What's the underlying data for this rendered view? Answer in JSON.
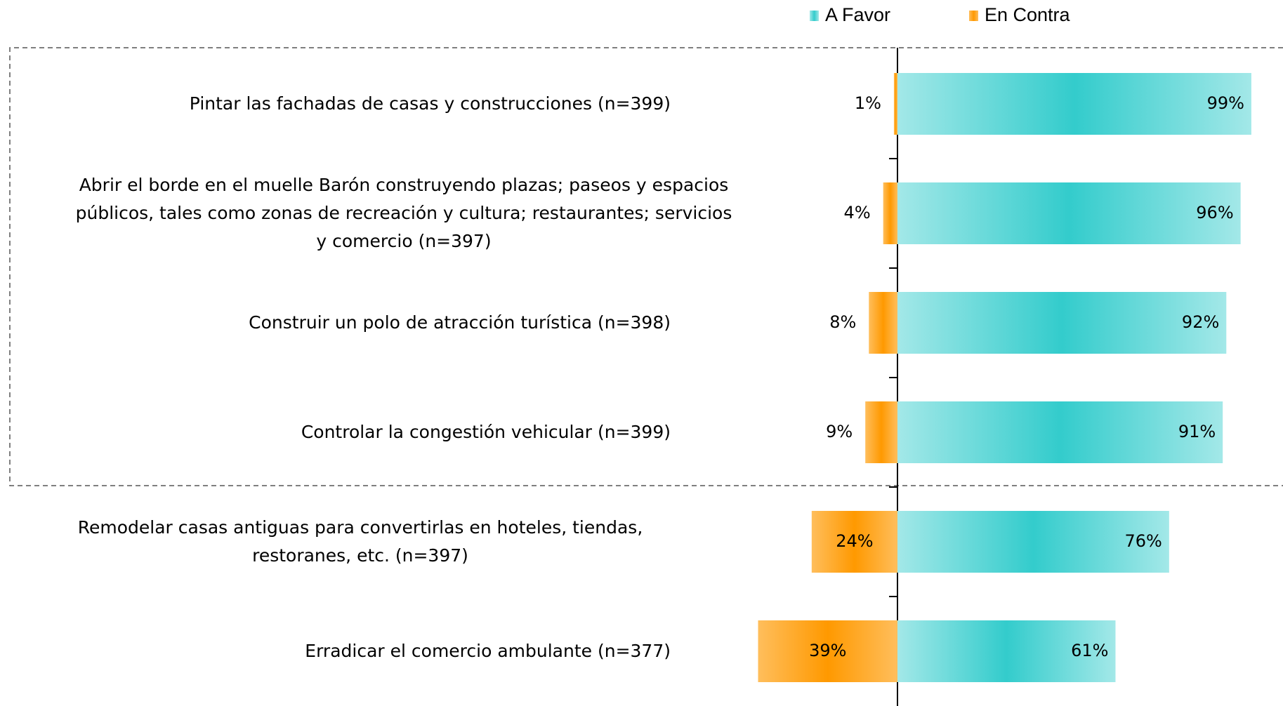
{
  "chart_data": {
    "type": "diverging-bar",
    "categories": [
      "Pintar las fachadas de casas y construcciones (n=399)",
      "Abrir el borde en el muelle Barón construyendo plazas; paseos y espacios\npúblicos, tales como zonas de recreación y cultura; restaurantes; servicios\ny comercio  (n=397)",
      "Construir un polo de atracción turística (n=398)",
      "Controlar la congestión vehicular (n=399)",
      "Remodelar casas antiguas para convertirlas en hoteles, tiendas,\nrestoranes, etc. (n=397)",
      "Erradicar el comercio ambulante (n=377)"
    ],
    "series": [
      {
        "name": "A Favor",
        "color": "#33cccc",
        "values": [
          99,
          96,
          92,
          91,
          76,
          61
        ],
        "value_labels": [
          "99%",
          "96%",
          "92%",
          "91%",
          "76%",
          "61%"
        ]
      },
      {
        "name": "En Contra",
        "color": "#ff9900",
        "values": [
          1,
          4,
          8,
          9,
          24,
          39
        ],
        "value_labels": [
          "1%",
          "4%",
          "8%",
          "9%",
          "24%",
          "39%"
        ]
      }
    ],
    "legend": "top-right"
  }
}
